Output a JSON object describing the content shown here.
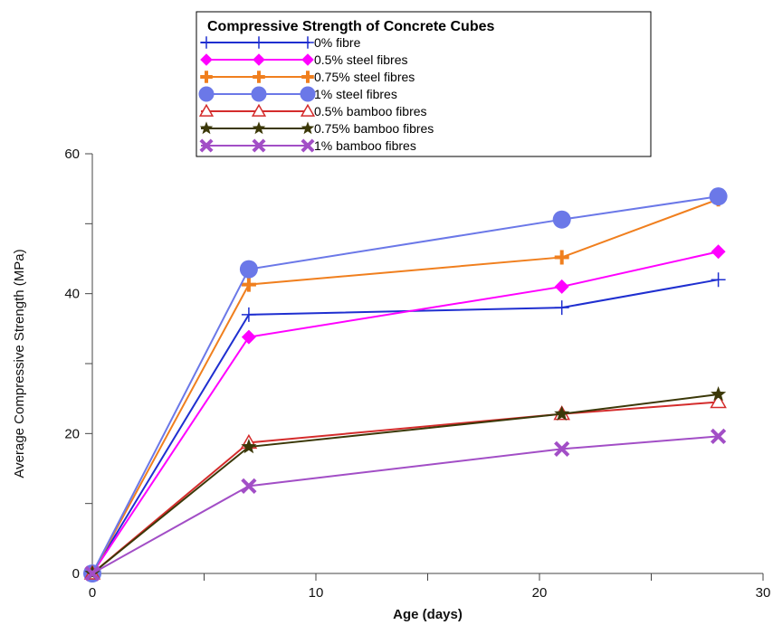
{
  "chart_data": {
    "type": "line",
    "xlabel": "Age (days)",
    "ylabel": "Average Compressive Strength (MPa)",
    "xlim": [
      0,
      30
    ],
    "ylim": [
      0,
      60
    ],
    "x_ticks": [
      0,
      10,
      20,
      30
    ],
    "y_ticks": [
      0,
      20,
      40,
      60
    ],
    "grid": false,
    "legend_title": "Compressive Strength of Concrete Cubes",
    "legend_position": "top-center",
    "x": [
      0,
      7,
      21,
      28
    ],
    "series": [
      {
        "name": "0% fibre",
        "values": [
          0,
          37,
          38,
          42
        ],
        "color": "#1f2fd0",
        "marker": "plus"
      },
      {
        "name": "0.5% steel fibres",
        "values": [
          0,
          33.8,
          41,
          46
        ],
        "color": "#ff00ff",
        "marker": "diamond"
      },
      {
        "name": "0.75% steel fibres",
        "values": [
          0,
          41.3,
          45.2,
          53.5
        ],
        "color": "#f07f1e",
        "marker": "thick-plus"
      },
      {
        "name": "1% steel fibres",
        "values": [
          0,
          43.5,
          50.6,
          53.9
        ],
        "color": "#6b78e8",
        "marker": "circle"
      },
      {
        "name": "0.5% bamboo fibres",
        "values": [
          0,
          18.7,
          22.8,
          24.5
        ],
        "color": "#d42c2c",
        "marker": "triangle"
      },
      {
        "name": "0.75% bamboo fibres",
        "values": [
          0,
          18.1,
          22.8,
          25.6
        ],
        "color": "#3b3808",
        "marker": "star"
      },
      {
        "name": "1% bamboo fibres",
        "values": [
          0,
          12.5,
          17.8,
          19.6
        ],
        "color": "#a24ec6",
        "marker": "x"
      }
    ]
  }
}
